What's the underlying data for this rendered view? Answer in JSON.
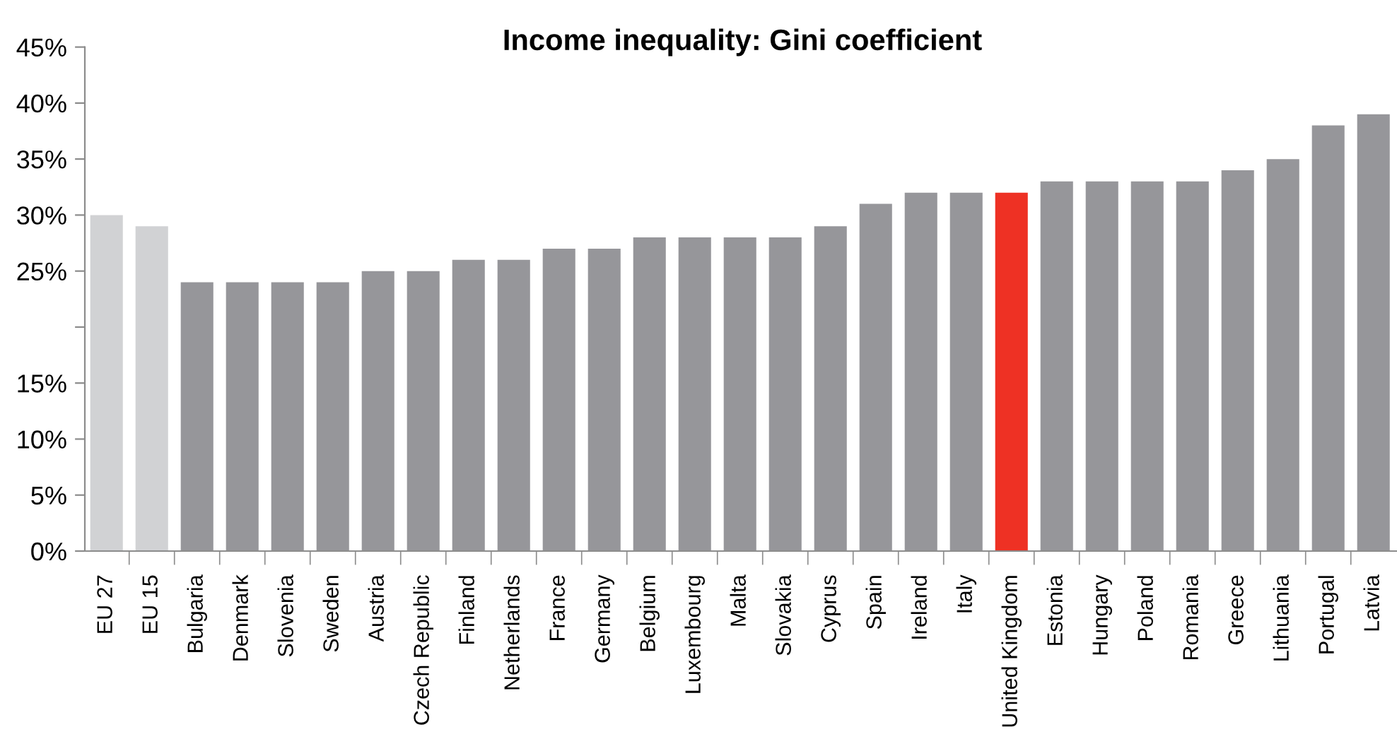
{
  "chart_data": {
    "type": "bar",
    "title": "Income inequality: Gini coefficient",
    "categories": [
      "EU 27",
      "EU 15",
      "Bulgaria",
      "Denmark",
      "Slovenia",
      "Sweden",
      "Austria",
      "Czech Republic",
      "Finland",
      "Netherlands",
      "France",
      "Germany",
      "Belgium",
      "Luxembourg",
      "Malta",
      "Slovakia",
      "Cyprus",
      "Spain",
      "Ireland",
      "Italy",
      "United Kingdom",
      "Estonia",
      "Hungary",
      "Poland",
      "Romania",
      "Greece",
      "Lithuania",
      "Portugal",
      "Latvia"
    ],
    "values": [
      30,
      29,
      24,
      24,
      24,
      24,
      25,
      25,
      26,
      26,
      27,
      27,
      28,
      28,
      28,
      28,
      29,
      31,
      32,
      32,
      32,
      33,
      33,
      33,
      33,
      34,
      35,
      38,
      39
    ],
    "colors": [
      "#d1d2d4",
      "#d1d2d4",
      "#96969a",
      "#96969a",
      "#96969a",
      "#96969a",
      "#96969a",
      "#96969a",
      "#96969a",
      "#96969a",
      "#96969a",
      "#96969a",
      "#96969a",
      "#96969a",
      "#96969a",
      "#96969a",
      "#96969a",
      "#96969a",
      "#96969a",
      "#96969a",
      "#ee3124",
      "#96969a",
      "#96969a",
      "#96969a",
      "#96969a",
      "#96969a",
      "#96969a",
      "#96969a",
      "#96969a"
    ],
    "ylim": [
      0,
      45
    ],
    "yticks": [
      {
        "value": 0,
        "label": "0%"
      },
      {
        "value": 5,
        "label": "5%"
      },
      {
        "value": 10,
        "label": "10%"
      },
      {
        "value": 15,
        "label": "15%"
      },
      {
        "value": 20,
        "label": null
      },
      {
        "value": 25,
        "label": "25%"
      },
      {
        "value": 30,
        "label": "30%"
      },
      {
        "value": 35,
        "label": "35%"
      },
      {
        "value": 40,
        "label": "40%"
      },
      {
        "value": 45,
        "label": "45%"
      }
    ],
    "grid": false
  }
}
